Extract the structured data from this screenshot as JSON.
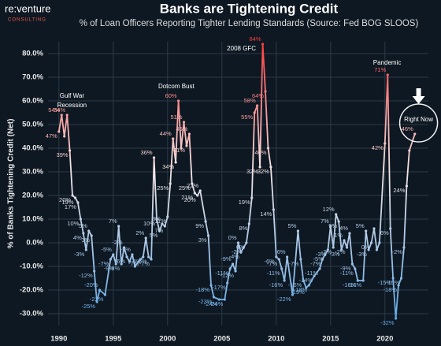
{
  "chart_data": {
    "type": "line",
    "title": "Banks are Tightening Credit",
    "subtitle": "% of Loan Officers Reporting Tighter Lending Standards (Source: Fed BOG SLOOS)",
    "ylabel": "% of Banks Tightening Credit (Net)",
    "logo": {
      "name": "re:venture",
      "tagline": "CONSULTING"
    },
    "annotations": [
      {
        "text": "Gulf War",
        "x": 1991.2,
        "y": 62
      },
      {
        "text": "Recession",
        "x": 1991.2,
        "y": 58
      },
      {
        "text": "Dotcom Bust",
        "x": 2000.8,
        "y": 66
      },
      {
        "text": "2008 GFC",
        "x": 2006.8,
        "y": 82
      },
      {
        "text": "Pandemic",
        "x": 2020.2,
        "y": 76
      },
      {
        "text": "Right Now",
        "x": 2023.1,
        "y": 52
      }
    ],
    "grid": true,
    "gradient": [
      "#ff3b3b",
      "#f3e6e6",
      "#5aa6e6"
    ],
    "xlim": [
      1989,
      2024
    ],
    "xticks": [
      1990,
      1995,
      2000,
      2005,
      2010,
      2015,
      2020
    ],
    "ylim": [
      -35,
      85
    ],
    "yticks": [
      {
        "value": -30,
        "label": "-30.0%"
      },
      {
        "value": -20,
        "label": "-20.0%"
      },
      {
        "value": -10,
        "label": "-10.0%"
      },
      {
        "value": 0,
        "label": "0.0%"
      },
      {
        "value": 10,
        "label": "10.0%"
      },
      {
        "value": 20,
        "label": "20.0%"
      },
      {
        "value": 30,
        "label": "30.0%"
      },
      {
        "value": 40,
        "label": "40.0%"
      },
      {
        "value": 50,
        "label": "50.0%"
      },
      {
        "value": 60,
        "label": "60.0%"
      },
      {
        "value": 70,
        "label": "70.0%"
      },
      {
        "value": 80,
        "label": "80.0%"
      }
    ],
    "x": [
      1990.0,
      1990.25,
      1990.5,
      1990.75,
      1991.0,
      1991.25,
      1991.5,
      1991.75,
      1992.0,
      1992.25,
      1992.5,
      1992.75,
      1993.0,
      1993.25,
      1993.5,
      1993.75,
      1994.25,
      1994.75,
      1995.0,
      1995.25,
      1995.5,
      1995.75,
      1996.0,
      1996.25,
      1996.5,
      1996.75,
      1997.0,
      1997.5,
      1997.75,
      1998.0,
      1998.25,
      1998.5,
      1998.75,
      1999.0,
      1999.25,
      1999.5,
      1999.75,
      2000.0,
      2000.25,
      2000.5,
      2000.75,
      2001.0,
      2001.25,
      2001.5,
      2001.75,
      2002.0,
      2002.25,
      2002.5,
      2002.75,
      2003.0,
      2003.5,
      2003.75,
      2004.0,
      2004.25,
      2004.75,
      2005.25,
      2005.5,
      2005.75,
      2006.0,
      2006.25,
      2006.5,
      2006.75,
      2007.0,
      2007.25,
      2007.5,
      2007.75,
      2008.0,
      2008.25,
      2008.5,
      2008.75,
      2009.0,
      2009.25,
      2009.5,
      2009.75,
      2010.0,
      2010.25,
      2010.5,
      2010.75,
      2011.0,
      2011.5,
      2012.0,
      2012.25,
      2012.5,
      2012.75,
      2013.0,
      2013.5,
      2014.0,
      2014.25,
      2014.5,
      2014.75,
      2015.0,
      2015.25,
      2015.5,
      2015.75,
      2016.0,
      2016.25,
      2016.5,
      2016.75,
      2017.0,
      2017.25,
      2017.5,
      2018.0,
      2018.25,
      2018.5,
      2018.75,
      2019.0,
      2019.25,
      2019.5,
      2020.0,
      2020.25,
      2020.5,
      2020.75,
      2021.0,
      2021.25,
      2021.5,
      2021.75,
      2022.0,
      2022.25,
      2022.75
    ],
    "values": [
      47,
      54,
      45,
      54,
      39,
      20,
      19,
      17,
      10,
      4,
      -3,
      5,
      3,
      -12,
      -25,
      -20,
      -22,
      -7,
      -5,
      -9,
      7,
      -9,
      -2,
      -6,
      -8,
      -5,
      -10,
      -7,
      -6,
      2,
      -6,
      -7,
      36,
      10,
      5,
      8,
      7,
      11,
      25,
      44,
      34,
      60,
      40,
      51,
      41,
      46,
      25,
      21,
      20,
      22,
      9,
      3,
      -18,
      -23,
      -24,
      -24,
      -17,
      -11,
      -9,
      -12,
      0,
      -4,
      -2,
      0,
      8,
      19,
      55,
      58,
      32,
      84,
      64,
      40,
      32,
      14,
      -6,
      -7,
      -11,
      -16,
      -6,
      -22,
      5,
      -7,
      -16,
      -19,
      -18,
      -14,
      -11,
      -7,
      -5,
      -3,
      7,
      -2,
      12,
      9,
      -3,
      1,
      -2,
      4,
      -9,
      -11,
      -16,
      -16,
      5,
      -3,
      0,
      6,
      -3,
      0,
      42,
      71,
      6,
      -15,
      -32,
      -18,
      -15,
      -2,
      24,
      39,
      46
    ],
    "value_labels": [
      "47%",
      "54%",
      null,
      "54%",
      "39%",
      "20%",
      "19%",
      "17%",
      "10%",
      "4%",
      "-3%",
      "5%",
      "3%",
      "-12%",
      "-25%",
      "-20%",
      "-22%",
      "-7%",
      "-5%",
      "-9%",
      "7%",
      "-9%",
      "-2%",
      "-6%",
      null,
      "-5%",
      null,
      "-7%",
      "-6%",
      "2%",
      "-6%",
      "-7%",
      "36%",
      "10%",
      "5%",
      "8%",
      "7%",
      "11%",
      "25%",
      "44%",
      "34%",
      "60%",
      null,
      "51%",
      "41%",
      "46%",
      "25%",
      "21%",
      "20%",
      "22%",
      "9%",
      "3%",
      "-18%",
      "-23%",
      "-24%",
      "-24%",
      "-17%",
      "-11%",
      "-9%",
      "-12%",
      "0%",
      "-4%",
      "-2%",
      "0%",
      "8%",
      "19%",
      "55%",
      "58%",
      "32%",
      "84%",
      "64%",
      "40%",
      "32%",
      "14%",
      "-6%",
      "-7%",
      "-11%",
      "-16%",
      "-6%",
      "-22%",
      "5%",
      "-7%",
      "-16%",
      "-19%",
      "-18%",
      "-14%",
      "-11%",
      "-7%",
      "-5%",
      "-3%",
      "7%",
      "-2%",
      "12%",
      "9%",
      "-3%",
      "1%",
      "-2%",
      "4%",
      "-9%",
      "-11%",
      "-16%",
      "-16%",
      "5%",
      "-3%",
      "0%",
      null,
      null,
      null,
      "42%",
      "71%",
      "6%",
      "-15%",
      "-32%",
      "-18%",
      "-15%",
      "-2%",
      "24%",
      null,
      "46%"
    ]
  }
}
